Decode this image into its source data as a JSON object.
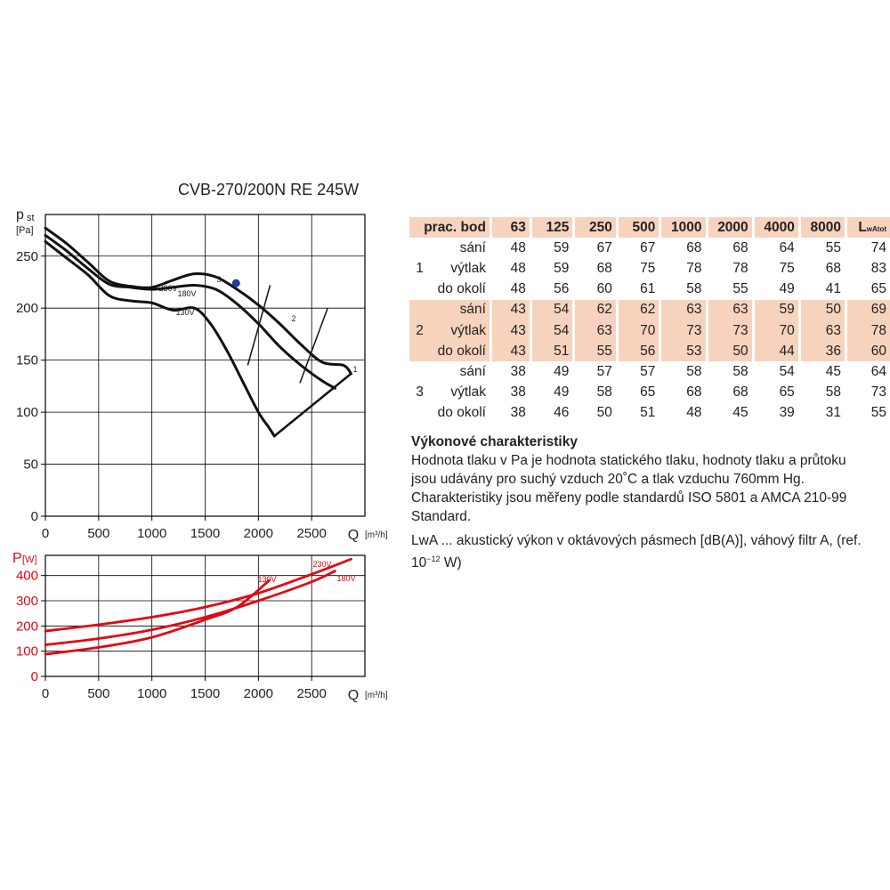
{
  "title": "CVB-270/200N RE 245W",
  "chart_data": [
    {
      "type": "line",
      "ylabel_main": "p",
      "ylabel_sub": "st",
      "yunit": "[Pa]",
      "xlabel": "Q",
      "xunit": "[m³/h]",
      "xlim": [
        0,
        3000
      ],
      "ylim": [
        0,
        290
      ],
      "xticks": [
        0,
        500,
        1000,
        1500,
        2000,
        2500
      ],
      "yticks": [
        0,
        50,
        100,
        150,
        200,
        250
      ],
      "grid": true,
      "series": [
        {
          "name": "230V",
          "x": [
            0,
            200,
            400,
            600,
            800,
            1000,
            1200,
            1400,
            1600,
            1800,
            2000,
            2200,
            2400,
            2600,
            2800,
            2870
          ],
          "y": [
            277,
            262,
            244,
            226,
            221,
            220,
            227,
            233,
            230,
            218,
            203,
            185,
            165,
            148,
            145,
            137
          ]
        },
        {
          "name": "180V",
          "x": [
            0,
            200,
            400,
            600,
            800,
            1000,
            1200,
            1400,
            1600,
            1800,
            2000,
            2200,
            2400,
            2600,
            2720
          ],
          "y": [
            270,
            255,
            238,
            223,
            220,
            218,
            220,
            222,
            218,
            204,
            185,
            163,
            145,
            130,
            123
          ]
        },
        {
          "name": "130V",
          "x": [
            0,
            200,
            400,
            600,
            800,
            1000,
            1200,
            1400,
            1550,
            1700,
            1850,
            2000,
            2100,
            2150
          ],
          "y": [
            264,
            248,
            232,
            212,
            207,
            205,
            198,
            200,
            185,
            160,
            130,
            100,
            85,
            77
          ]
        }
      ],
      "system_lines": [
        {
          "label": "1",
          "x": [
            2150,
            2870
          ],
          "y": [
            77,
            137
          ]
        },
        {
          "label": "2",
          "x": [
            2390,
            2650
          ],
          "y": [
            128,
            200
          ]
        },
        {
          "label": "3",
          "x": [
            1900,
            2110
          ],
          "y": [
            145,
            222
          ]
        }
      ],
      "marker": {
        "x": 1790,
        "y": 224
      },
      "annotations": [
        "230V",
        "180V",
        "130V",
        "1",
        "2",
        "3"
      ]
    },
    {
      "type": "line",
      "ylabel_main": "P",
      "yunit": "[W]",
      "xlabel": "Q",
      "xunit": "[m³/h]",
      "xlim": [
        0,
        3000
      ],
      "ylim": [
        0,
        480
      ],
      "xticks": [
        0,
        500,
        1000,
        1500,
        2000,
        2500
      ],
      "yticks": [
        0,
        100,
        200,
        300,
        400
      ],
      "grid": true,
      "color": "#e30613",
      "series": [
        {
          "name": "230V",
          "x": [
            0,
            500,
            1000,
            1500,
            2000,
            2500,
            2870
          ],
          "y": [
            180,
            205,
            235,
            275,
            330,
            405,
            465
          ]
        },
        {
          "name": "180V",
          "x": [
            0,
            500,
            1000,
            1500,
            2000,
            2500,
            2720
          ],
          "y": [
            125,
            150,
            185,
            235,
            300,
            375,
            418
          ]
        },
        {
          "name": "130V",
          "x": [
            0,
            500,
            1000,
            1500,
            1800,
            2100
          ],
          "y": [
            88,
            115,
            155,
            225,
            275,
            380
          ]
        }
      ]
    }
  ],
  "table": {
    "header": [
      "prac. bod",
      "63",
      "125",
      "250",
      "500",
      "1000",
      "2000",
      "4000",
      "8000"
    ],
    "header_last_main": "L",
    "header_last_sub": "wAtot",
    "groups": [
      {
        "point": "1",
        "rows": [
          {
            "pos": "sání",
            "vals": [
              "48",
              "59",
              "67",
              "67",
              "68",
              "68",
              "64",
              "55",
              "74"
            ]
          },
          {
            "pos": "výtlak",
            "vals": [
              "48",
              "59",
              "68",
              "75",
              "78",
              "78",
              "75",
              "68",
              "83"
            ]
          },
          {
            "pos": "do okolí",
            "vals": [
              "48",
              "56",
              "60",
              "61",
              "58",
              "55",
              "49",
              "41",
              "65"
            ]
          }
        ]
      },
      {
        "point": "2",
        "rows": [
          {
            "pos": "sání",
            "vals": [
              "43",
              "54",
              "62",
              "62",
              "63",
              "63",
              "59",
              "50",
              "69"
            ]
          },
          {
            "pos": "výtlak",
            "vals": [
              "43",
              "54",
              "63",
              "70",
              "73",
              "73",
              "70",
              "63",
              "78"
            ]
          },
          {
            "pos": "do okolí",
            "vals": [
              "43",
              "51",
              "55",
              "56",
              "53",
              "50",
              "44",
              "36",
              "60"
            ]
          }
        ]
      },
      {
        "point": "3",
        "rows": [
          {
            "pos": "sání",
            "vals": [
              "38",
              "49",
              "57",
              "57",
              "58",
              "58",
              "54",
              "45",
              "64"
            ]
          },
          {
            "pos": "výtlak",
            "vals": [
              "38",
              "49",
              "58",
              "65",
              "68",
              "68",
              "65",
              "58",
              "73"
            ]
          },
          {
            "pos": "do okolí",
            "vals": [
              "38",
              "46",
              "50",
              "51",
              "48",
              "45",
              "39",
              "31",
              "55"
            ]
          }
        ]
      }
    ]
  },
  "description": {
    "heading": "Výkonové charakteristiky",
    "text": "Hodnota tlaku v Pa je hodnota statického tlaku, hodnoty tlaku a průtoku jsou udávány pro suchý vzduch 20˚C a tlak vzduchu 760mm Hg. Charakteristiky jsou měřeny podle standardů ISO 5801 a AMCA 210-99 Standard.",
    "lwa_text": "LwA ... akustický výkon v oktávových pásmech [dB(A)], váhový filtr A, (ref. 10",
    "lwa_exp": "−12",
    "lwa_tail": " W)"
  },
  "colors": {
    "curve": "#111111",
    "power": "#e30613",
    "band": "#f7d3be",
    "marker": "#1f3c9e",
    "grid": "#000000"
  }
}
